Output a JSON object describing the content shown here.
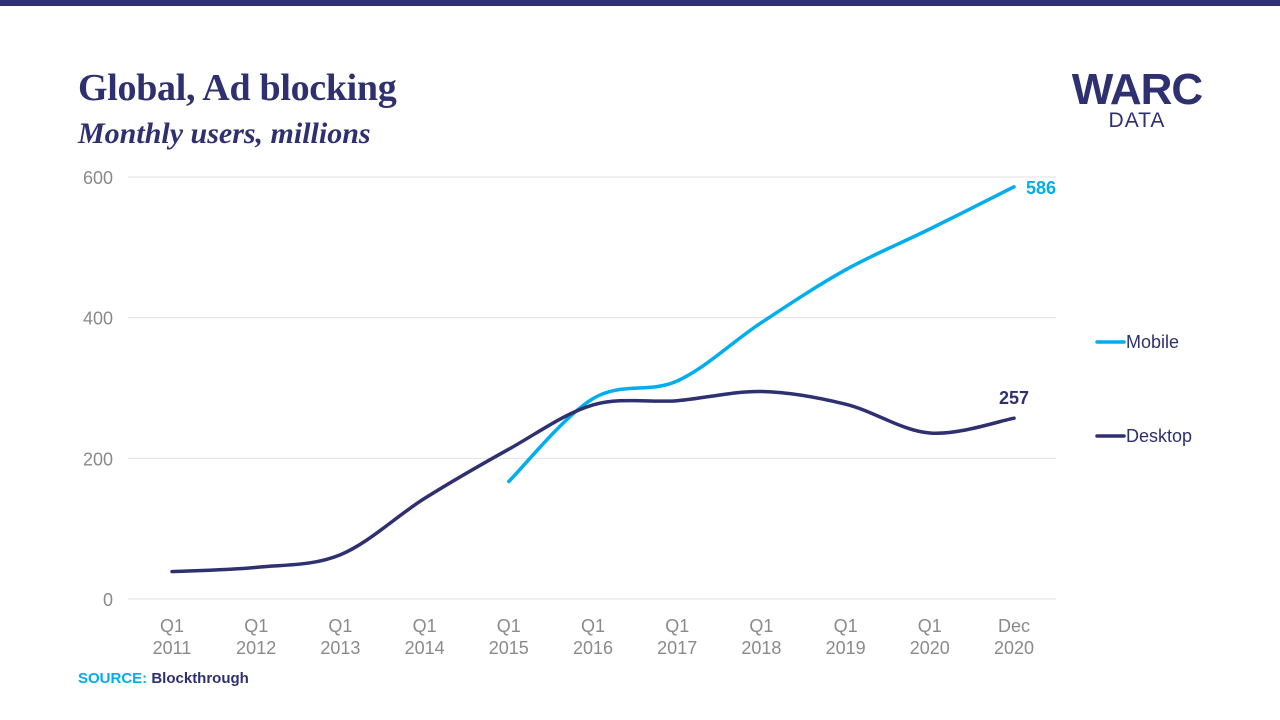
{
  "header": {
    "title": "Global, Ad blocking",
    "subtitle": "Monthly users, millions"
  },
  "logo": {
    "main": "WARC",
    "sub": "DATA"
  },
  "source": {
    "label": "SOURCE:",
    "value": "Blockthrough"
  },
  "colors": {
    "brand": "#2e3070",
    "mobile": "#00aeef",
    "desktop": "#2e3070",
    "grid": "#e1e1e1",
    "tick_text": "#8a8a8a"
  },
  "chart_data": {
    "type": "line",
    "title": "Global, Ad blocking",
    "subtitle": "Monthly users, millions",
    "xlabel": "",
    "ylabel": "",
    "ylim": [
      0,
      600
    ],
    "yticks": [
      "0",
      "200",
      "400",
      "600"
    ],
    "grid": true,
    "legend_position": "right",
    "categories": [
      [
        "Q1",
        "2011"
      ],
      [
        "Q1",
        "2012"
      ],
      [
        "Q1",
        "2013"
      ],
      [
        "Q1",
        "2014"
      ],
      [
        "Q1",
        "2015"
      ],
      [
        "Q1",
        "2016"
      ],
      [
        "Q1",
        "2017"
      ],
      [
        "Q1",
        "2018"
      ],
      [
        "Q1",
        "2019"
      ],
      [
        "Q1",
        "2020"
      ],
      [
        "Dec",
        "2020"
      ]
    ],
    "series": [
      {
        "name": "Mobile",
        "color": "#00aeef",
        "end_label": "586",
        "values": [
          null,
          null,
          null,
          null,
          167,
          285,
          310,
          393,
          468,
          526,
          586
        ]
      },
      {
        "name": "Desktop",
        "color": "#2e3070",
        "end_label": "257",
        "values": [
          39,
          45,
          63,
          143,
          213,
          276,
          282,
          295,
          277,
          236,
          257
        ]
      }
    ]
  }
}
